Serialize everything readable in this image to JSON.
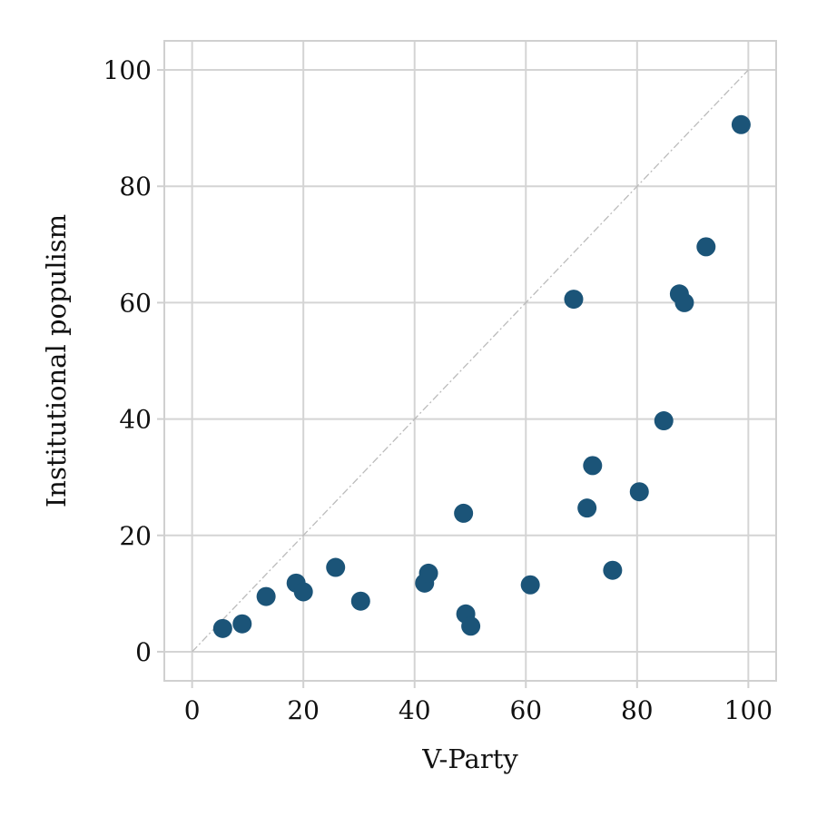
{
  "chart_data": {
    "type": "scatter",
    "title": "",
    "xlabel": "V-Party",
    "ylabel": "Institutional populism",
    "xlim": [
      -5,
      105
    ],
    "ylim": [
      -5,
      105
    ],
    "xticks": [
      0,
      20,
      40,
      60,
      80,
      100
    ],
    "yticks": [
      0,
      20,
      40,
      60,
      80,
      100
    ],
    "grid": true,
    "reference_line": {
      "from": [
        0,
        0
      ],
      "to": [
        100,
        100
      ],
      "style": "dash-dot",
      "color": "#bbbbbb"
    },
    "marker_color": "#1b5478",
    "points": [
      {
        "x": 5.5,
        "y": 4.0
      },
      {
        "x": 9.0,
        "y": 4.8
      },
      {
        "x": 13.3,
        "y": 9.5
      },
      {
        "x": 18.7,
        "y": 11.8
      },
      {
        "x": 20.0,
        "y": 10.3
      },
      {
        "x": 25.8,
        "y": 14.5
      },
      {
        "x": 30.3,
        "y": 8.7
      },
      {
        "x": 41.8,
        "y": 11.8
      },
      {
        "x": 42.5,
        "y": 13.5
      },
      {
        "x": 48.8,
        "y": 23.8
      },
      {
        "x": 49.2,
        "y": 6.5
      },
      {
        "x": 50.1,
        "y": 4.4
      },
      {
        "x": 60.8,
        "y": 11.5
      },
      {
        "x": 68.6,
        "y": 60.6
      },
      {
        "x": 71.0,
        "y": 24.7
      },
      {
        "x": 72.0,
        "y": 32.0
      },
      {
        "x": 75.6,
        "y": 14.0
      },
      {
        "x": 80.4,
        "y": 27.5
      },
      {
        "x": 84.8,
        "y": 39.7
      },
      {
        "x": 87.6,
        "y": 61.5
      },
      {
        "x": 88.5,
        "y": 60.0
      },
      {
        "x": 92.4,
        "y": 69.6
      },
      {
        "x": 98.7,
        "y": 90.6
      }
    ]
  }
}
